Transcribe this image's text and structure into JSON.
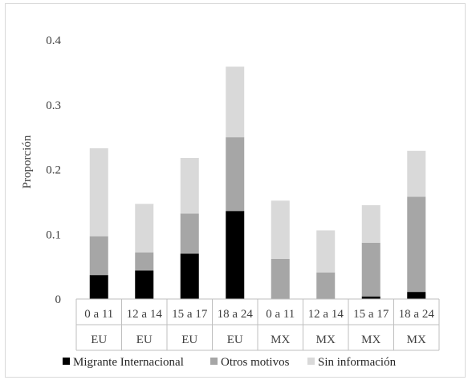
{
  "chart_data": {
    "type": "bar",
    "stacked": true,
    "categories": [
      "0 a 11",
      "12 a 14",
      "15 a 17",
      "18 a 24",
      "0 a 11",
      "12 a 14",
      "15 a 17",
      "18 a 24"
    ],
    "groups": [
      "EU",
      "EU",
      "EU",
      "EU",
      "MX",
      "MX",
      "MX",
      "MX"
    ],
    "series": [
      {
        "name": "Migrante Internacional",
        "color": "#000000",
        "values": [
          0.037,
          0.044,
          0.07,
          0.136,
          0.0,
          0.0,
          0.004,
          0.011
        ]
      },
      {
        "name": "Otros motivos",
        "color": "#a6a6a6",
        "values": [
          0.06,
          0.028,
          0.062,
          0.114,
          0.062,
          0.041,
          0.083,
          0.147
        ]
      },
      {
        "name": "Sin información",
        "color": "#d9d9d9",
        "values": [
          0.136,
          0.075,
          0.086,
          0.109,
          0.09,
          0.065,
          0.058,
          0.071
        ]
      }
    ],
    "ylabel": "Proporción",
    "xlabel": "",
    "ylim": [
      0,
      0.4
    ],
    "yticks": [
      "0",
      "0.1",
      "0.2",
      "0.3",
      "0.4"
    ],
    "grid": false,
    "legend_position": "bottom"
  }
}
